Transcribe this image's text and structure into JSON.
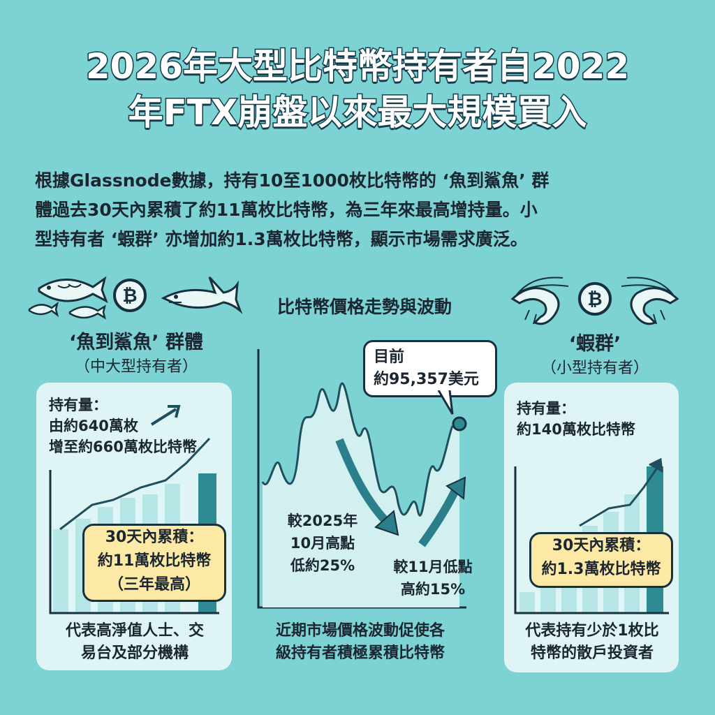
{
  "title": {
    "line1": "2026年大型比特幣持有者自2022",
    "line2": "年FTX崩盤以來最大規模買入"
  },
  "intro": {
    "line1": "根據Glassnode數據，持有10至1000枚比特幣的 ‘魚到鯊魚’ 群",
    "line2": "體過去30天內累積了約11萬枚比特幣，為三年來最高增持量。小",
    "line3": "型持有者 ‘蝦群’ 亦增加約1.3萬枚比特幣，顯示市場需求廣泛。"
  },
  "left": {
    "heading": "‘魚到鯊魚’ 群體",
    "subheading": "（中大型持有者）",
    "holdings_label": "持有量：",
    "holdings_line1": "由約640萬枚",
    "holdings_line2": "增至約660萬枚比特幣",
    "note_line1": "30天內累積：",
    "note_line2": "約11萬枚比特幣",
    "note_line3": "（三年最高）",
    "caption_line1": "代表高淨值人士、交",
    "caption_line2": "易台及部分機構",
    "icons": [
      "fish-icon",
      "bitcoin-icon",
      "shark-icon",
      "small-fish-icon"
    ]
  },
  "center": {
    "heading": "比特幣價格走勢與波動",
    "bubble_line1": "目前",
    "bubble_line2": "約95,357美元",
    "drop_line1": "較2025年",
    "drop_line2": "10月高點",
    "drop_line3": "低約25%",
    "rise_line1": "較11月低點",
    "rise_line2": "高約15%",
    "caption_line1": "近期市場價格波動促使各",
    "caption_line2": "級持有者積極累積比特幣"
  },
  "right": {
    "heading": "‘蝦群’",
    "subheading": "（小型持有者）",
    "holdings_label": "持有量：",
    "holdings_line1": "約140萬枚比特幣",
    "note_line1": "30天內累積：",
    "note_line2": "約1.3萬枚比特幣",
    "caption_line1": "代表持有少於1枚比",
    "caption_line2": "特幣的散戶投資者",
    "icons": [
      "shrimp-icon",
      "bitcoin-icon",
      "shrimp-icon"
    ]
  },
  "colors": {
    "background": "#7dd3d3",
    "panel": "#dff4f4",
    "line": "#1f4e5c",
    "note": "#fbe9a5",
    "arrow": "#2a7f8a"
  }
}
